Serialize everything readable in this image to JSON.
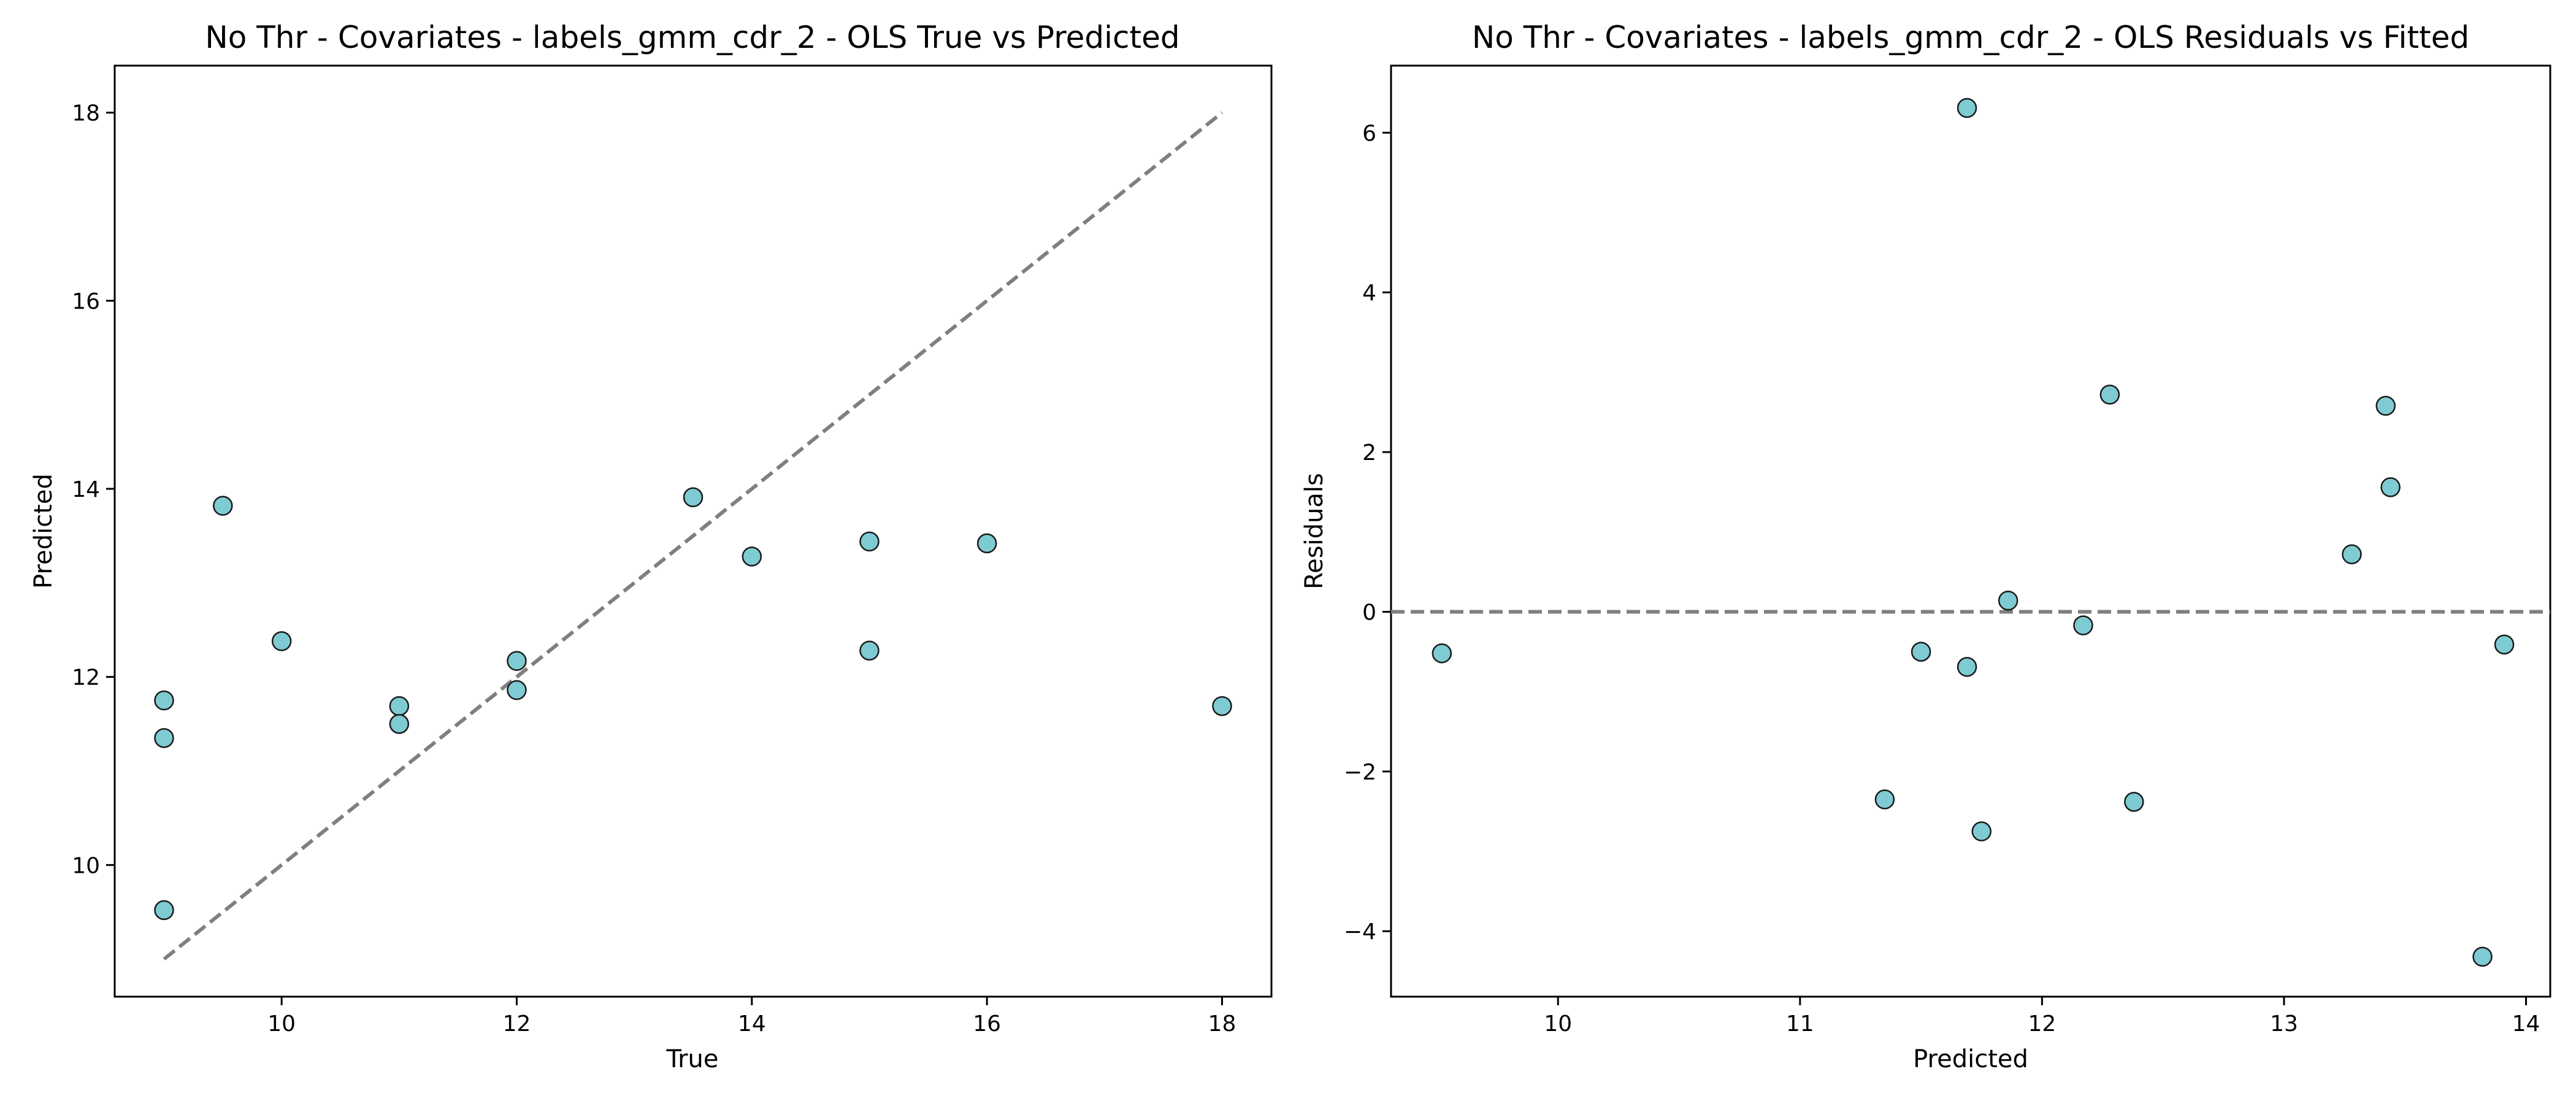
{
  "chart_data": [
    {
      "type": "scatter",
      "title": "No Thr - Covariates - labels_gmm_cdr_2 - OLS True vs Predicted",
      "xlabel": "True",
      "ylabel": "Predicted",
      "xlim": [
        8.58,
        18.42
      ],
      "ylim": [
        8.6,
        18.5
      ],
      "xticks": [
        10,
        12,
        14,
        16,
        18
      ],
      "yticks": [
        10,
        12,
        14,
        16,
        18
      ],
      "x": [
        9,
        9,
        9,
        9.5,
        10,
        11,
        11,
        12,
        12,
        13.5,
        14,
        15,
        15,
        16,
        18
      ],
      "y": [
        11.75,
        11.35,
        9.52,
        13.82,
        12.38,
        11.69,
        11.5,
        12.17,
        11.86,
        13.91,
        13.28,
        13.44,
        12.28,
        13.42,
        11.69
      ],
      "reference_line": {
        "from": [
          9,
          9
        ],
        "to": [
          18,
          18
        ],
        "style": "dashed"
      },
      "grid": false,
      "colors": {
        "marker_fill": "#7ecbd3",
        "marker_edge": "#1a1a1a",
        "reference_line": "#7f7f7f"
      }
    },
    {
      "type": "scatter",
      "title": "No Thr - Covariates - labels_gmm_cdr_2 - OLS Residuals vs Fitted",
      "xlabel": "Predicted",
      "ylabel": "Residuals",
      "xlim": [
        9.31,
        14.1
      ],
      "ylim": [
        -4.82,
        6.84
      ],
      "xticks": [
        10,
        11,
        12,
        13,
        14
      ],
      "yticks": [
        -4,
        -2,
        0,
        2,
        4,
        6
      ],
      "x": [
        9.52,
        11.35,
        11.5,
        11.69,
        11.69,
        11.75,
        11.86,
        12.17,
        12.28,
        12.38,
        13.28,
        13.42,
        13.44,
        13.82,
        13.91
      ],
      "y": [
        -0.52,
        -2.35,
        -0.5,
        6.31,
        -0.69,
        -2.75,
        0.14,
        -0.17,
        2.72,
        -2.38,
        0.72,
        2.58,
        1.56,
        -4.32,
        -0.41
      ],
      "reference_line": {
        "y": 0,
        "style": "dashed"
      },
      "grid": false,
      "colors": {
        "marker_fill": "#7ecbd3",
        "marker_edge": "#1a1a1a",
        "reference_line": "#7f7f7f"
      }
    }
  ]
}
